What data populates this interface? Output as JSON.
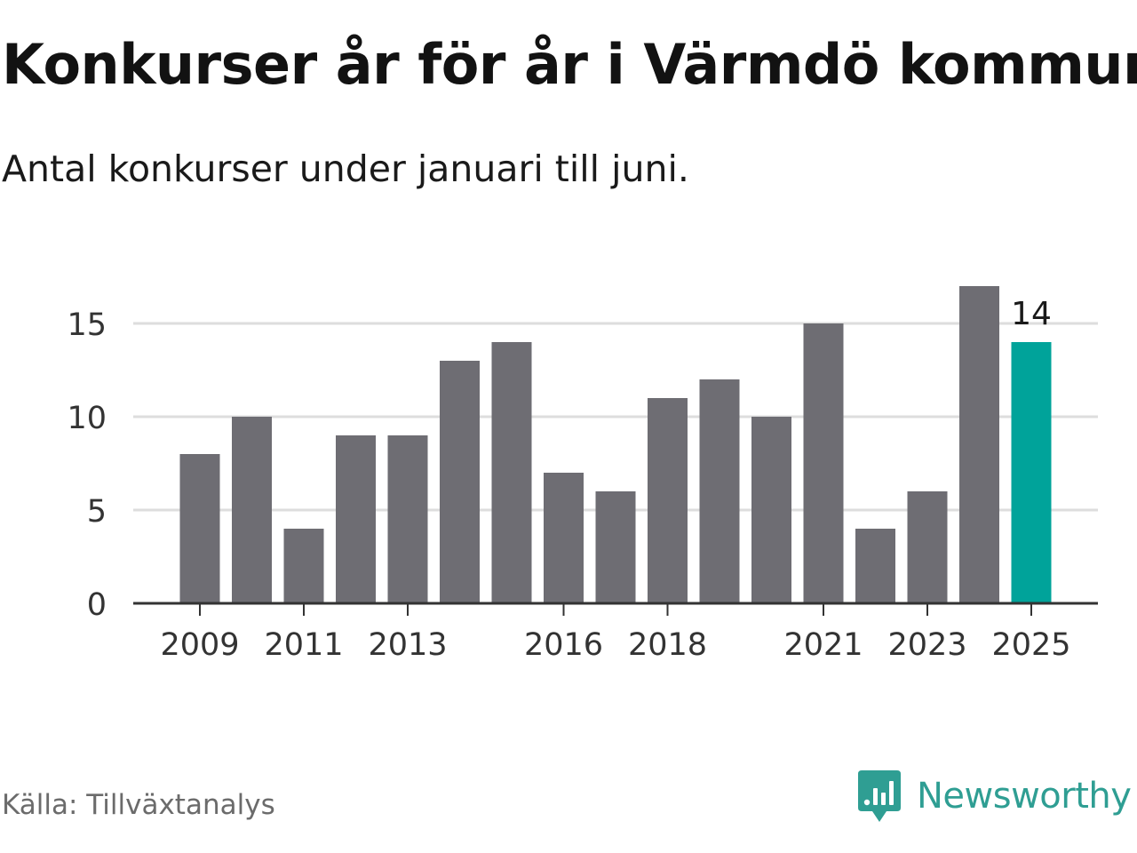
{
  "title": "Konkurser år för år i Värmdö kommun",
  "subtitle": "Antal konkurser under januari till juni.",
  "source": "Källa: Tillväxtanalys",
  "brand": {
    "name": "Newsworthy",
    "icon": "newsworthy-logo-icon",
    "color": "#2f9e93"
  },
  "colors": {
    "bar": "#6e6d73",
    "highlight": "#00a39a",
    "grid": "#dddddd",
    "axis": "#333333"
  },
  "chart_data": {
    "type": "bar",
    "categories": [
      "2009",
      "2010",
      "2011",
      "2012",
      "2013",
      "2014",
      "2015",
      "2016",
      "2017",
      "2018",
      "2019",
      "2020",
      "2021",
      "2022",
      "2023",
      "2024",
      "2025"
    ],
    "values": [
      8,
      10,
      4,
      9,
      9,
      13,
      14,
      7,
      6,
      11,
      12,
      10,
      15,
      4,
      6,
      17,
      14
    ],
    "x_tick_labels": [
      "2009",
      "2011",
      "2013",
      "2016",
      "2018",
      "2021",
      "2023",
      "2025"
    ],
    "y_ticks": [
      0,
      5,
      10,
      15
    ],
    "ylim": [
      0,
      17
    ],
    "grid": true,
    "highlight": {
      "category": "2025",
      "label": "14"
    },
    "title": "",
    "xlabel": "",
    "ylabel": ""
  }
}
